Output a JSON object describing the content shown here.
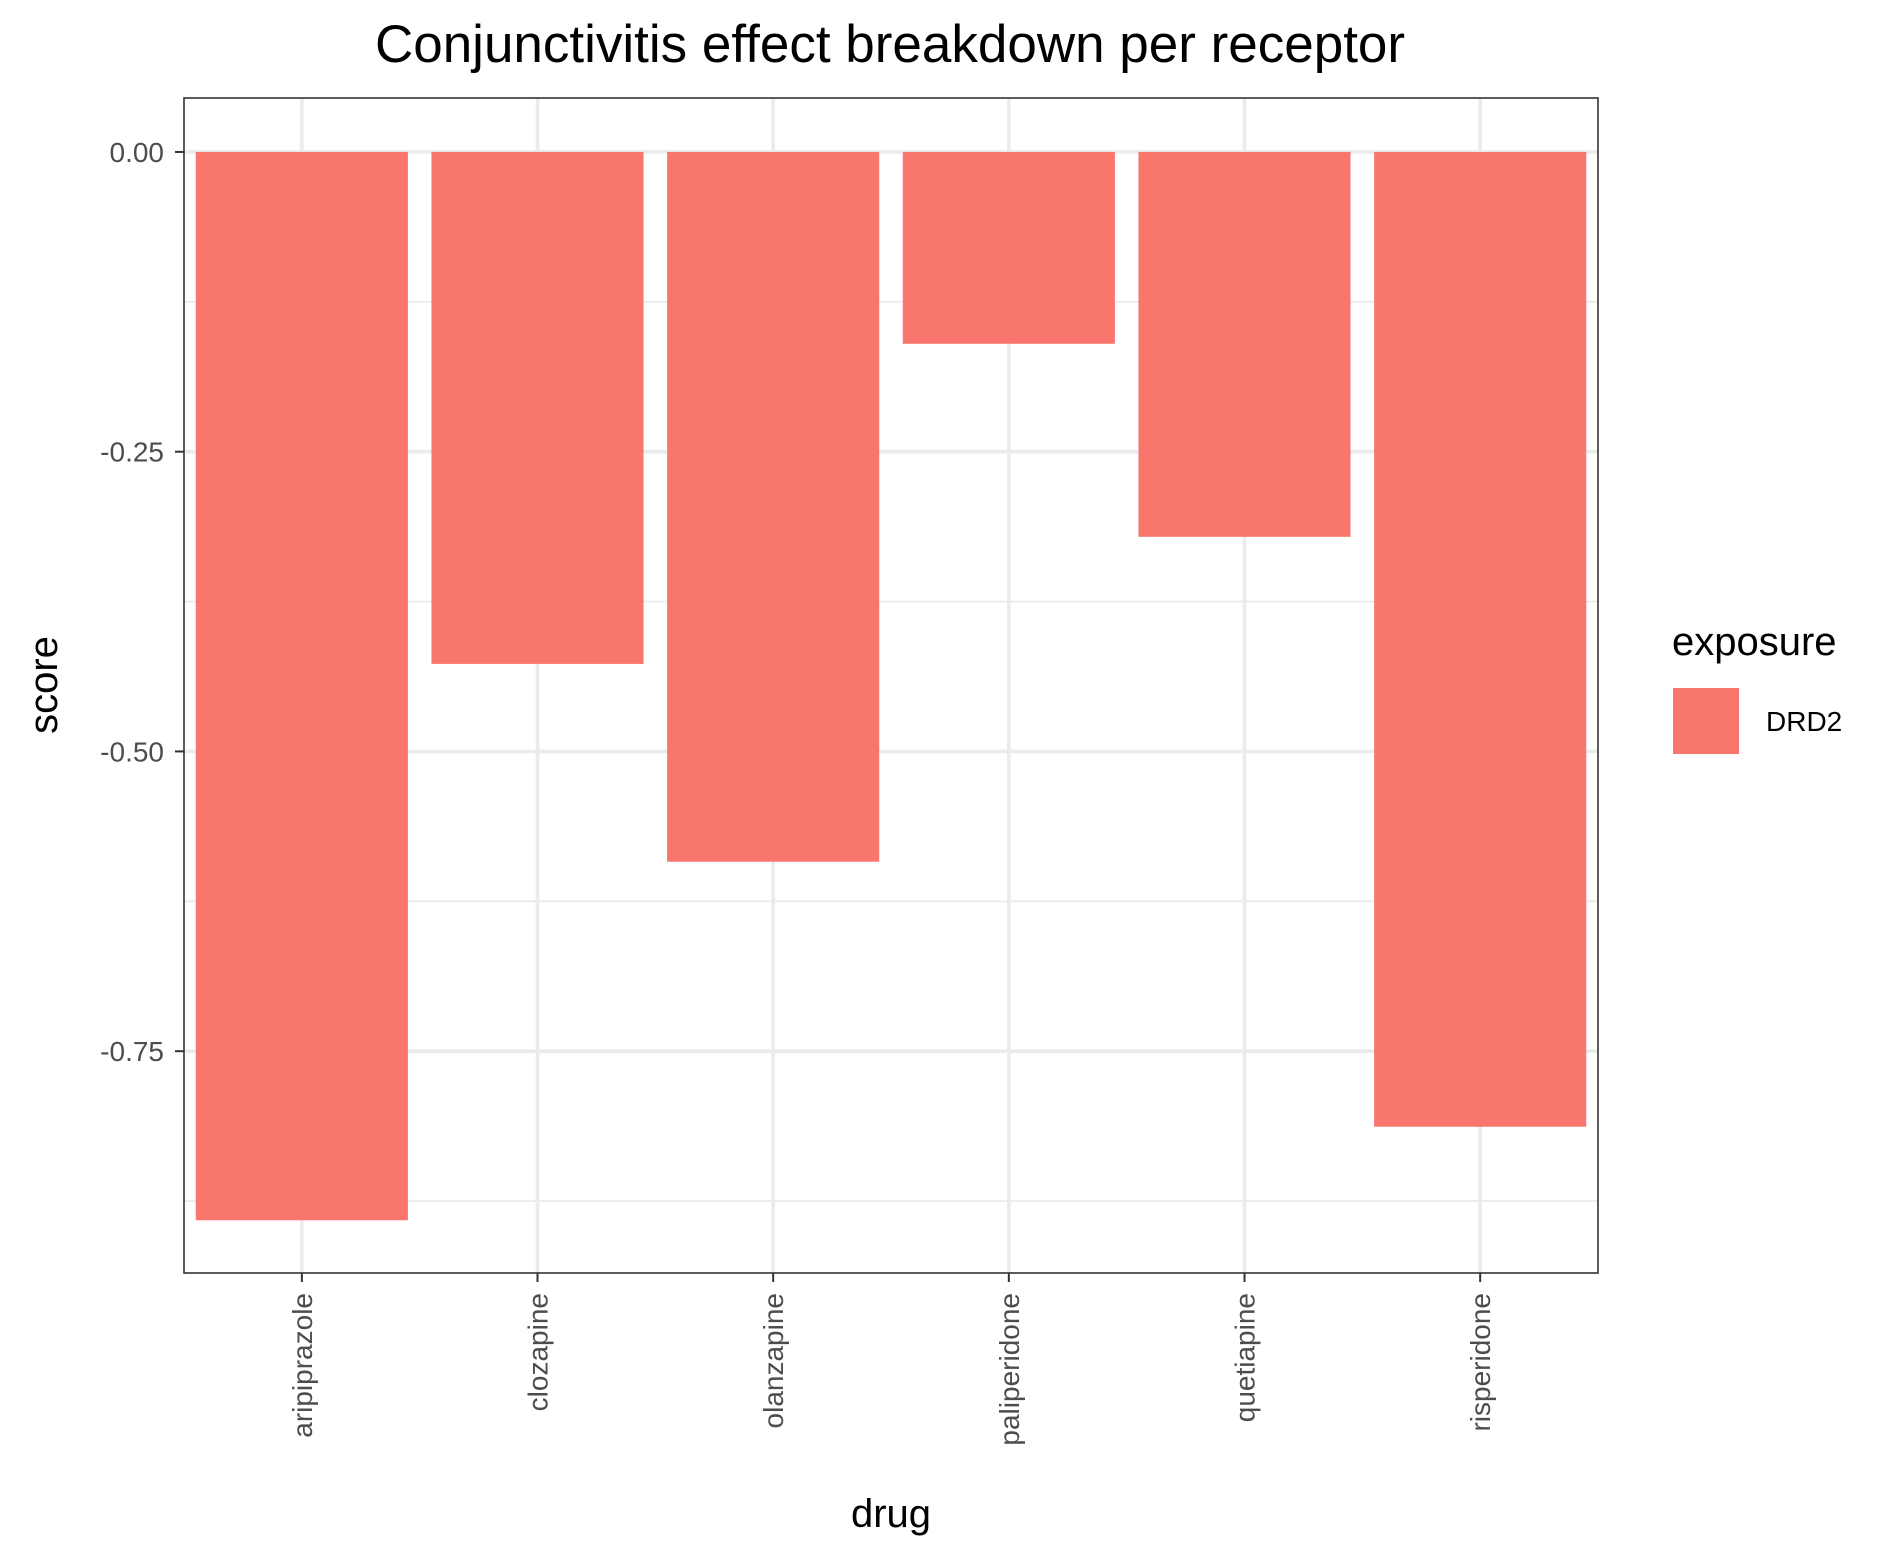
{
  "chart_data": {
    "type": "bar",
    "title": "Conjunctivitis effect breakdown per receptor",
    "xlabel": "drug",
    "ylabel": "score",
    "categories": [
      "aripiprazole",
      "clozapine",
      "olanzapine",
      "paliperidone",
      "quetiapine",
      "risperidone"
    ],
    "series": [
      {
        "name": "DRD2",
        "values": [
          -0.891,
          -0.427,
          -0.592,
          -0.16,
          -0.321,
          -0.813
        ]
      }
    ],
    "ylim": [
      -0.935,
      0.045
    ],
    "yticks": [
      0,
      -0.25,
      -0.5,
      -0.75
    ],
    "ytick_labels": [
      "0.00",
      "-0.25",
      "-0.50",
      "-0.75"
    ],
    "grid": true,
    "legend": {
      "title": "exposure",
      "position": "right"
    },
    "colors": {
      "DRD2": "#F8766D"
    }
  }
}
